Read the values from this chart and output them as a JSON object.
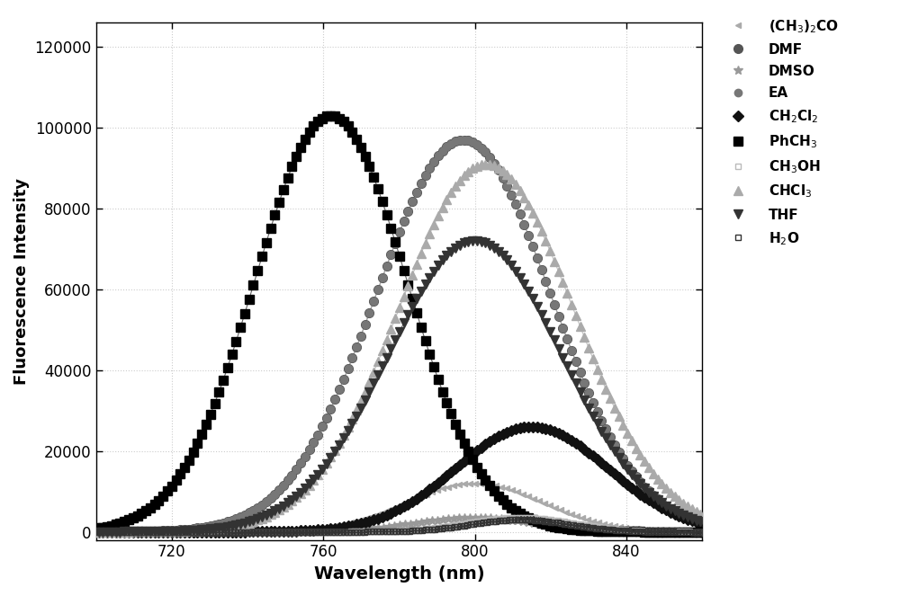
{
  "xlabel": "Wavelength (nm)",
  "ylabel": "Fluorescence Intensity",
  "xlim": [
    700,
    860
  ],
  "ylim": [
    -2000,
    126000
  ],
  "xticks": [
    720,
    760,
    800,
    840
  ],
  "yticks": [
    0,
    20000,
    40000,
    60000,
    80000,
    100000,
    120000
  ],
  "figure_bg": "#ffffff",
  "axes_bg": "#ffffff",
  "grid_color": "#cccccc",
  "series": [
    {
      "label": "(CH$_3$)$_2$CO",
      "peak": 800,
      "amp": 12000,
      "sigma": 18,
      "color": "#aaaaaa",
      "lcolor": "#bbbbbb",
      "marker": "<",
      "ms": 5,
      "hollow": false,
      "every": 5
    },
    {
      "label": "DMF",
      "peak": 797,
      "amp": 97000,
      "sigma": 23,
      "color": "#555555",
      "lcolor": "#888888",
      "marker": "o",
      "ms": 7,
      "hollow": false,
      "every": 4
    },
    {
      "label": "DMSO",
      "peak": 800,
      "amp": 3500,
      "sigma": 16,
      "color": "#999999",
      "lcolor": "#aaaaaa",
      "marker": "*",
      "ms": 7,
      "hollow": false,
      "every": 5
    },
    {
      "label": "EA",
      "peak": 797,
      "amp": 97000,
      "sigma": 23,
      "color": "#777777",
      "lcolor": "#aaaaaa",
      "marker": "o",
      "ms": 6,
      "hollow": false,
      "every": 4
    },
    {
      "label": "CH$_2$Cl$_2$",
      "peak": 815,
      "amp": 26000,
      "sigma": 20,
      "color": "#111111",
      "lcolor": "#555555",
      "marker": "D",
      "ms": 6,
      "hollow": false,
      "every": 4
    },
    {
      "label": "PhCH$_3$",
      "peak": 762,
      "amp": 103000,
      "sigma": 20,
      "color": "#000000",
      "lcolor": "#555555",
      "marker": "s",
      "ms": 7,
      "hollow": false,
      "every": 4
    },
    {
      "label": "CH$_3$OH",
      "peak": 812,
      "amp": 3500,
      "sigma": 14,
      "color": "#bbbbbb",
      "lcolor": "#cccccc",
      "marker": "s",
      "ms": 5,
      "hollow": true,
      "every": 3
    },
    {
      "label": "CHCl$_3$",
      "peak": 803,
      "amp": 91000,
      "sigma": 23,
      "color": "#aaaaaa",
      "lcolor": "#bbbbbb",
      "marker": "^",
      "ms": 7,
      "hollow": false,
      "every": 4
    },
    {
      "label": "THF",
      "peak": 800,
      "amp": 72000,
      "sigma": 23,
      "color": "#333333",
      "lcolor": "#666666",
      "marker": "v",
      "ms": 7,
      "hollow": false,
      "every": 4
    },
    {
      "label": "H$_2$O",
      "peak": 812,
      "amp": 3000,
      "sigma": 13,
      "color": "#333333",
      "lcolor": "#888888",
      "marker": "s",
      "ms": 5,
      "hollow": true,
      "cross": true,
      "every": 3
    }
  ]
}
